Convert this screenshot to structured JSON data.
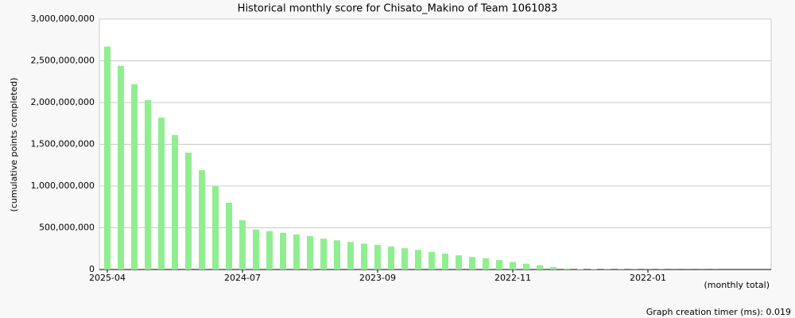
{
  "chart_data": {
    "type": "bar",
    "title": "Historical monthly score for Chisato_Makino of Team 1061083",
    "y_label": "(cumulative points completed)",
    "x_label": "(monthly total)",
    "footer": "Graph creation timer (ms): 0.019",
    "categories": [
      "2025-04",
      null,
      null,
      null,
      null,
      null,
      null,
      null,
      null,
      null,
      "2024-07",
      null,
      null,
      null,
      null,
      null,
      null,
      null,
      null,
      null,
      "2023-09",
      null,
      null,
      null,
      null,
      null,
      null,
      null,
      null,
      null,
      "2022-11",
      null,
      null,
      null,
      null,
      null,
      null,
      null,
      null,
      null,
      "2022-01",
      null,
      null,
      null,
      null,
      null,
      null,
      null,
      null,
      null
    ],
    "values": [
      2670000000,
      2440000000,
      2220000000,
      2030000000,
      1820000000,
      1610000000,
      1400000000,
      1190000000,
      1000000000,
      800000000,
      590000000,
      480000000,
      460000000,
      440000000,
      420000000,
      400000000,
      370000000,
      350000000,
      330000000,
      310000000,
      295000000,
      275000000,
      255000000,
      235000000,
      210000000,
      190000000,
      170000000,
      150000000,
      135000000,
      115000000,
      90000000,
      70000000,
      50000000,
      30000000,
      12000000,
      5000000,
      4000000,
      3000000,
      3000000,
      2000000,
      2000000,
      2000000,
      1000000,
      1000000,
      1000000,
      1000000,
      0,
      0,
      0,
      0
    ],
    "color": "#90ee90",
    "ylim": [
      0,
      3000000000
    ],
    "yticks": [
      0,
      {
        "value": 500000000,
        "label": "500,000,000"
      },
      {
        "value": 1000000000,
        "label": "1,000,000,000"
      },
      {
        "value": 1500000000,
        "label": "1,500,000,000"
      },
      {
        "value": 2000000000,
        "label": "2,000,000,000"
      },
      {
        "value": 2500000000,
        "label": "2,500,000,000"
      },
      {
        "value": 3000000000,
        "label": "3,000,000,000"
      }
    ],
    "grid": true
  }
}
